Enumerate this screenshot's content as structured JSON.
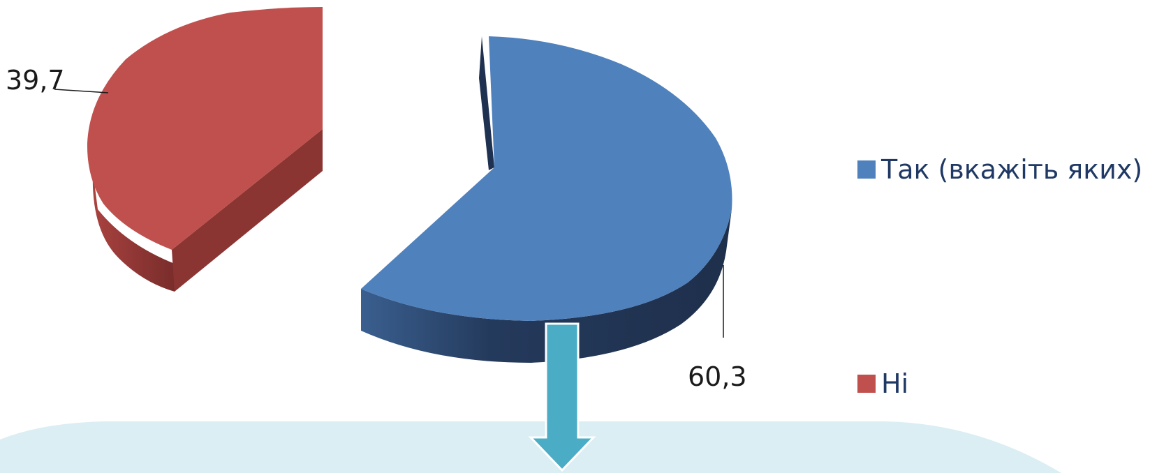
{
  "chart_data": {
    "type": "pie",
    "style": "3d-exploded",
    "categories": [
      "Так (вкажіть яких)",
      "Ні"
    ],
    "values": [
      60.3,
      39.7
    ],
    "data_labels": [
      "60,3",
      "39,7"
    ],
    "legend": {
      "position": "right",
      "items": [
        {
          "label": "Так (вкажіть яких)",
          "color": "#4f81bd"
        },
        {
          "label": "Ні",
          "color": "#c0504d"
        }
      ]
    }
  },
  "colors": {
    "series_1_top": "#4f81bd",
    "series_1_side": "#22324d",
    "series_2_top": "#c0504d",
    "series_2_side": "#8b3533",
    "arrow": "#4bacc6",
    "callout_box": "#daeef3"
  }
}
